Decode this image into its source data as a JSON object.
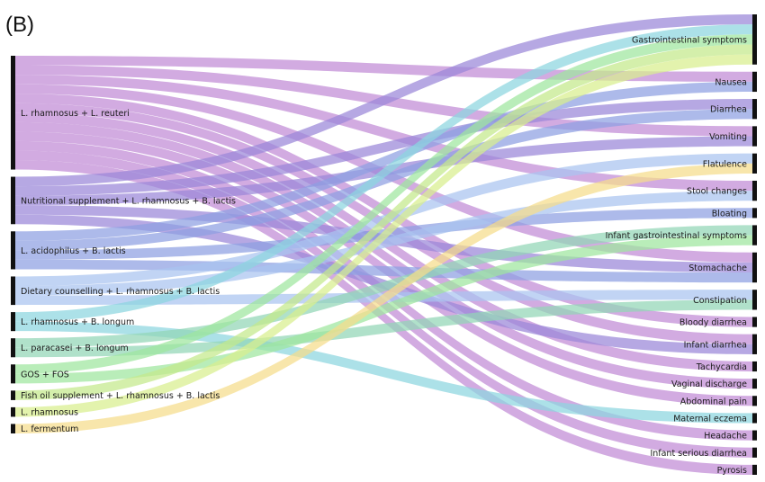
{
  "panel_label": "(B)",
  "sources": [
    {
      "name": "L. rhamnosus + L. reuteri",
      "color": "#c08ad6"
    },
    {
      "name": "Nutritional supplement + L. rhamnosus + B. lactis",
      "color": "#9a86d8"
    },
    {
      "name": "L. acidophilus + B. lactis",
      "color": "#8ea0e2"
    },
    {
      "name": "Dietary counselling + L. rhamnosus + B. lactis",
      "color": "#a9c4f0"
    },
    {
      "name": "L. rhamnosus + B. longum",
      "color": "#8cd6df"
    },
    {
      "name": "L. paracasei + B. longum",
      "color": "#92d6b5"
    },
    {
      "name": "GOS + FOS",
      "color": "#9ee69e"
    },
    {
      "name": "Fish oil supplement + L. rhamnosus + B. lactis",
      "color": "#c4e98a"
    },
    {
      "name": "L. rhamnosus",
      "color": "#d8ef8e"
    },
    {
      "name": "L. fermentum",
      "color": "#f5dc8a"
    }
  ],
  "targets": [
    {
      "name": "Gastrointestinal symptoms"
    },
    {
      "name": "Nausea"
    },
    {
      "name": "Diarrhea"
    },
    {
      "name": "Vomiting"
    },
    {
      "name": "Flatulence"
    },
    {
      "name": "Stool changes"
    },
    {
      "name": "Bloating"
    },
    {
      "name": "Infant gastrointestinal symptoms"
    },
    {
      "name": "Stomachache"
    },
    {
      "name": "Constipation"
    },
    {
      "name": "Bloody diarrhea"
    },
    {
      "name": "Infant diarrhea"
    },
    {
      "name": "Tachycardia"
    },
    {
      "name": "Vaginal discharge"
    },
    {
      "name": "Abdominal pain"
    },
    {
      "name": "Maternal eczema"
    },
    {
      "name": "Headache"
    },
    {
      "name": "Infant serious diarrhea"
    },
    {
      "name": "Pyrosis"
    }
  ],
  "links": [
    [
      0,
      1,
      1
    ],
    [
      0,
      3,
      1
    ],
    [
      0,
      8,
      1
    ],
    [
      0,
      5,
      1
    ],
    [
      0,
      10,
      1
    ],
    [
      0,
      11,
      1
    ],
    [
      0,
      12,
      1
    ],
    [
      0,
      13,
      1
    ],
    [
      0,
      14,
      1
    ],
    [
      0,
      16,
      1
    ],
    [
      0,
      17,
      1
    ],
    [
      0,
      18,
      1
    ],
    [
      1,
      0,
      1
    ],
    [
      1,
      2,
      1
    ],
    [
      1,
      3,
      1
    ],
    [
      1,
      8,
      1
    ],
    [
      1,
      11,
      1
    ],
    [
      2,
      1,
      1
    ],
    [
      2,
      2,
      1
    ],
    [
      2,
      6,
      1
    ],
    [
      2,
      8,
      1
    ],
    [
      3,
      4,
      1
    ],
    [
      3,
      5,
      1
    ],
    [
      3,
      9,
      1
    ],
    [
      4,
      0,
      1
    ],
    [
      4,
      15,
      1
    ],
    [
      5,
      7,
      1
    ],
    [
      5,
      9,
      1
    ],
    [
      6,
      0,
      1
    ],
    [
      6,
      7,
      1
    ],
    [
      7,
      0,
      1
    ],
    [
      8,
      0,
      1
    ],
    [
      9,
      4,
      1
    ]
  ]
}
